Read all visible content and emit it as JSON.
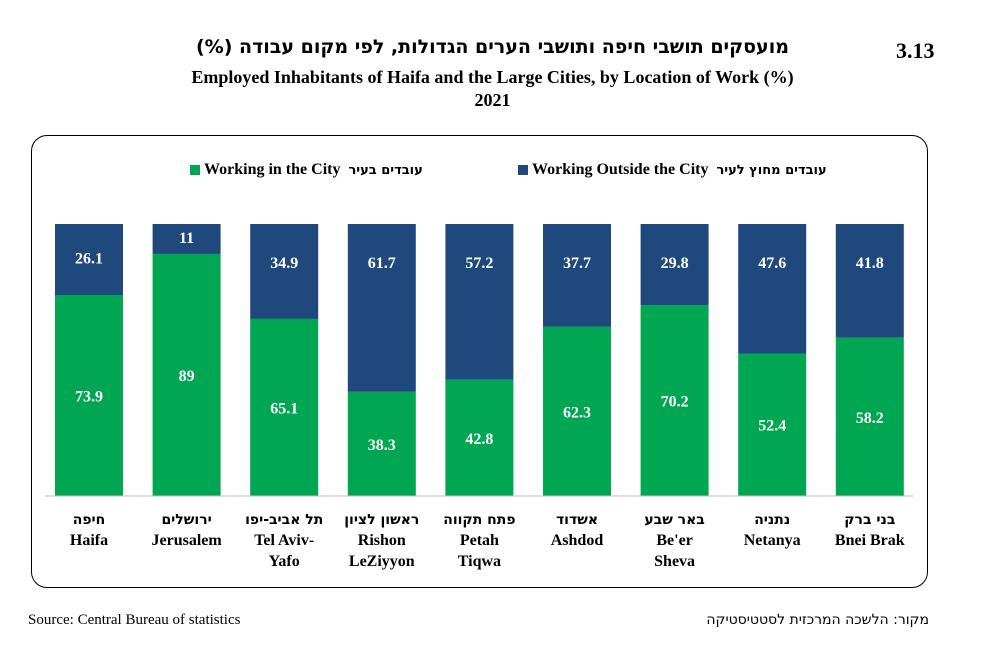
{
  "header": {
    "figure_number": "3.13",
    "title_he": "מועסקים תושבי חיפה ותושבי הערים הגדולות, לפי מקום עבודה (%)",
    "title_en": "Employed Inhabitants of Haifa and the Large Cities, by Location of Work (%)",
    "year": "2021"
  },
  "legend": [
    {
      "label_en": "Working in the City",
      "label_he": "עובדים בעיר",
      "color": "#00A651"
    },
    {
      "label_en": "Working Outside the City",
      "label_he": "עובדים מחוץ לעיר",
      "color": "#1F497D"
    }
  ],
  "footer": {
    "source_en": "Source: Central Bureau of statistics",
    "source_he": "מקור: הלשכה המרכזית לסטטיסטיקה"
  },
  "chart_data": {
    "type": "bar",
    "stacked": true,
    "ylim": [
      0,
      100
    ],
    "grid": false,
    "legend_position": "top",
    "categories": [
      {
        "he": "חיפה",
        "en": [
          "Haifa"
        ]
      },
      {
        "he": "ירושלים",
        "en": [
          "Jerusalem"
        ]
      },
      {
        "he": "תל אביב-יפו",
        "en": [
          "Tel Aviv-",
          "Yafo"
        ]
      },
      {
        "he": "ראשון לציון",
        "en": [
          "Rishon",
          "LeZiyyon"
        ]
      },
      {
        "he": "פתח תקווה",
        "en": [
          "Petah",
          "Tiqwa"
        ]
      },
      {
        "he": "אשדוד",
        "en": [
          "Ashdod"
        ]
      },
      {
        "he": "באר שבע",
        "en": [
          "Be'er",
          "Sheva"
        ]
      },
      {
        "he": "נתניה",
        "en": [
          "Netanya"
        ]
      },
      {
        "he": "בני ברק",
        "en": [
          "Bnei Brak"
        ]
      }
    ],
    "series": [
      {
        "name": "Working in the City",
        "color": "#00A651",
        "values": [
          73.9,
          89,
          65.1,
          38.3,
          42.8,
          62.3,
          70.2,
          52.4,
          58.2
        ]
      },
      {
        "name": "Working Outside the City",
        "color": "#1F497D",
        "values": [
          26.1,
          11,
          34.9,
          61.7,
          57.2,
          37.7,
          29.8,
          47.6,
          41.8
        ]
      }
    ]
  }
}
